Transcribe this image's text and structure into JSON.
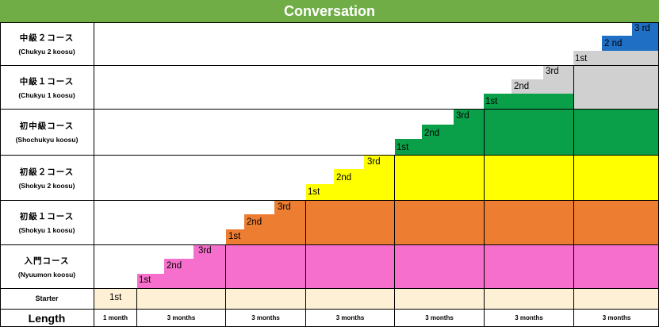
{
  "title": "Conversation",
  "colors": {
    "title_bg": "#70ad47",
    "level1_blue": "#1f6fc5",
    "level2_gray": "#d0d0d0",
    "level3_green": "#0aa04a",
    "level4_yellow": "#ffff00",
    "level5_orange": "#ed7d31",
    "level6_pink": "#f66fcc",
    "starter_cream": "#fdf0d5"
  },
  "rows": [
    {
      "jp": "中級２コース",
      "romaji": "(Chukyu 2 koosu)"
    },
    {
      "jp": "中級１コース",
      "romaji": "(Chukyu 1 koosu)"
    },
    {
      "jp": "初中級コース",
      "romaji": "(Shochukyu koosu)"
    },
    {
      "jp": "初級２コース",
      "romaji": "(Shokyu 2 koosu)"
    },
    {
      "jp": "初級１コース",
      "romaji": "(Shokyu 1 koosu)"
    },
    {
      "jp": "入門コース",
      "romaji": "(Nyuumon koosu)"
    },
    {
      "jp": "Starter",
      "romaji": ""
    }
  ],
  "length_label": "Length",
  "column_lengths": [
    "1 month",
    "3 months",
    "3 months",
    "3 months",
    "3 months",
    "3 months",
    "3 months"
  ],
  "step_labels": {
    "starter": [
      "1st"
    ],
    "nyuumon": [
      "1st",
      "2nd",
      "3rd"
    ],
    "shokyu1": [
      "1st",
      "2nd",
      "3rd"
    ],
    "shokyu2": [
      "1st",
      "2nd",
      "3rd"
    ],
    "shochukyu": [
      "1st",
      "2nd",
      "3rd"
    ],
    "chukyu1": [
      "1st",
      "2nd",
      "3rd"
    ],
    "chukyu2": [
      "1st",
      "2 nd",
      "3 rd"
    ]
  }
}
